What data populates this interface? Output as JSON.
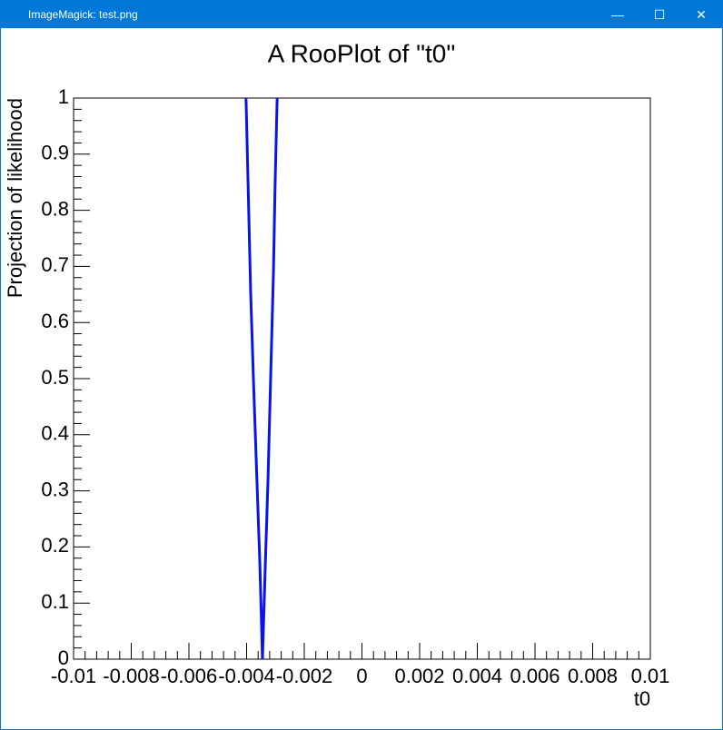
{
  "window": {
    "title": "ImageMagick: test.png"
  },
  "chart_data": {
    "type": "line",
    "title": "A RooPlot of \"t0\"",
    "x_label": "t0",
    "y_label": "Projection of likelihood",
    "series": [
      {
        "color": "#0a14e6",
        "x": [
          -0.00402,
          -0.00395,
          -0.00386,
          -0.00376,
          -0.00364,
          -0.00354,
          -0.00345,
          -0.00335,
          -0.00326,
          -0.00317,
          -0.00307,
          -0.00301,
          -0.00294
        ],
        "values": [
          1,
          0.85,
          0.655,
          0.494,
          0.316,
          0.17,
          0,
          0.17,
          0.316,
          0.494,
          0.688,
          0.85,
          1
        ]
      }
    ],
    "xlim": [
      -0.01,
      0.01
    ],
    "xticks": [
      -0.01,
      -0.008,
      -0.006,
      -0.004,
      -0.002,
      0,
      0.002,
      0.004,
      0.006,
      0.008,
      0.01
    ],
    "ylim": [
      0,
      1
    ],
    "yticks": [
      0,
      0.1,
      0.2,
      0.3,
      0.4,
      0.5,
      0.6,
      0.7,
      0.8,
      0.9,
      1
    ],
    "grid": false
  }
}
